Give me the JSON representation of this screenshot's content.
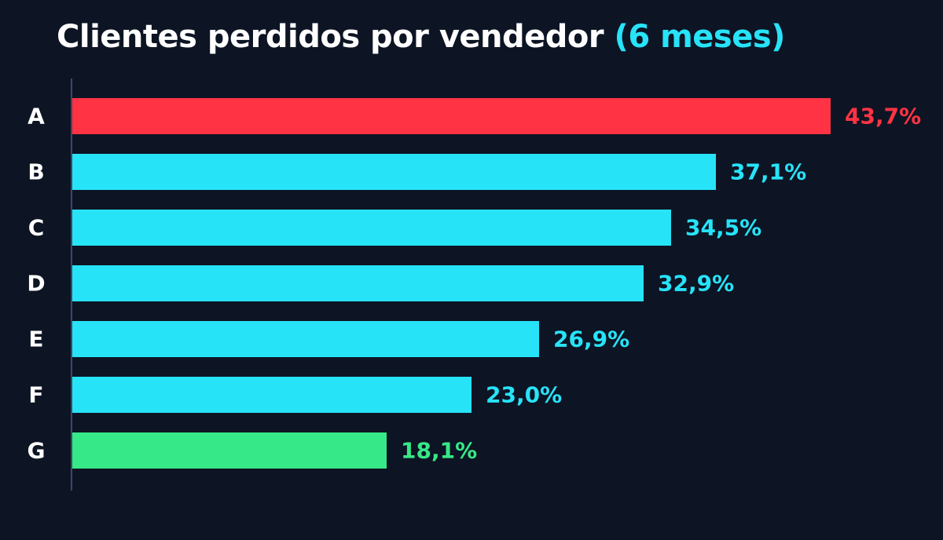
{
  "title": {
    "main": "Clientes perdidos por vendedor",
    "accent": "(6 meses)"
  },
  "colors": {
    "background": "#0d1424",
    "highest": "#ff3344",
    "default": "#27e3f8",
    "lowest": "#36e887",
    "axis": "#3a4a66"
  },
  "chart_data": {
    "type": "bar",
    "orientation": "horizontal",
    "title": "Clientes perdidos por vendedor (6 meses)",
    "categories": [
      "A",
      "B",
      "C",
      "D",
      "E",
      "F",
      "G"
    ],
    "values": [
      43.7,
      37.1,
      34.5,
      32.9,
      26.9,
      23.0,
      18.1
    ],
    "value_labels": [
      "43,7%",
      "37,1%",
      "34,5%",
      "32,9%",
      "26,9%",
      "23,0%",
      "18,1%"
    ],
    "bar_colors": [
      "#ff3344",
      "#27e3f8",
      "#27e3f8",
      "#27e3f8",
      "#27e3f8",
      "#27e3f8",
      "#36e887"
    ],
    "xlim": [
      0,
      43.7
    ],
    "xlabel": "",
    "ylabel": "",
    "grid": false,
    "legend": "none"
  }
}
